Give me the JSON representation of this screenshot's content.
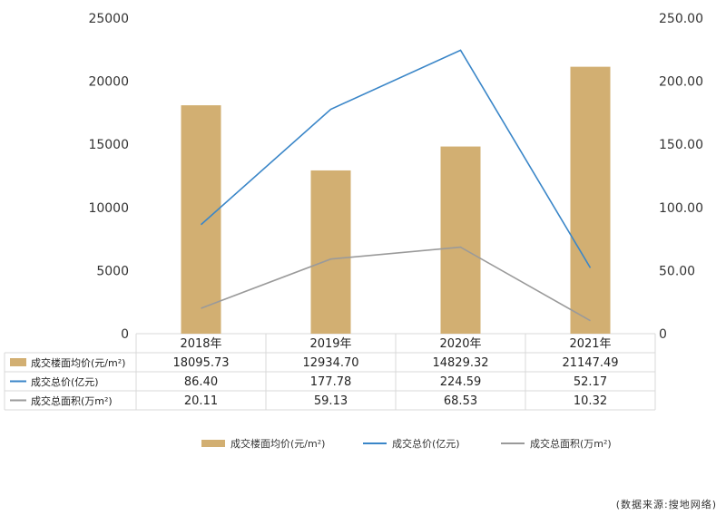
{
  "chart_data": {
    "type": "bar",
    "categories": [
      "2018年",
      "2019年",
      "2020年",
      "2021年"
    ],
    "series": [
      {
        "name": "成交楼面均价(元/m²)",
        "kind": "bar",
        "axis": "left",
        "color": "#D2AF72",
        "values": [
          18095.73,
          12934.7,
          14829.32,
          21147.49
        ],
        "labels": [
          "18095.73",
          "12934.70",
          "14829.32",
          "21147.49"
        ]
      },
      {
        "name": "成交总价(亿元)",
        "kind": "line",
        "axis": "right",
        "color": "#3A86C8",
        "values": [
          86.4,
          177.78,
          224.59,
          52.17
        ],
        "labels": [
          "86.40",
          "177.78",
          "224.59",
          "52.17"
        ]
      },
      {
        "name": "成交总面积(万m²)",
        "kind": "line",
        "axis": "right",
        "color": "#9A9A9A",
        "values": [
          20.11,
          59.13,
          68.53,
          10.32
        ],
        "labels": [
          "20.11",
          "59.13",
          "68.53",
          "10.32"
        ]
      }
    ],
    "left_axis": {
      "range": [
        0,
        25000
      ],
      "ticks": [
        "0",
        "5000",
        "10000",
        "15000",
        "20000",
        "25000"
      ]
    },
    "right_axis": {
      "range": [
        0,
        250
      ],
      "ticks": [
        "0",
        "50.00",
        "100.00",
        "150.00",
        "200.00",
        "250.00"
      ]
    },
    "grid": false,
    "legend_position": "bottom",
    "data_table": true
  },
  "source_note": "(数据来源:搜地网络)"
}
